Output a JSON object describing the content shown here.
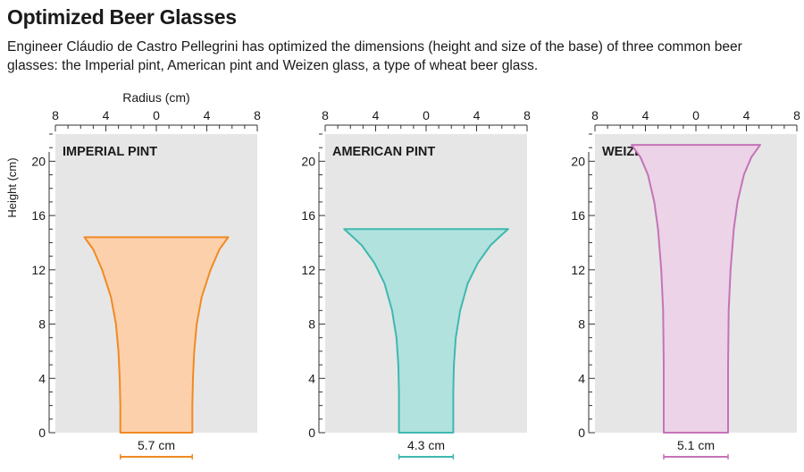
{
  "title": "Optimized Beer Glasses",
  "subtitle": "Engineer Cláudio de Castro Pellegrini has optimized the dimensions (height and size of the base) of three common beer glasses: the Imperial pint, American pint and Weizen glass, a type of wheat beer glass.",
  "chart_data": [
    {
      "type": "area",
      "title": "IMPERIAL PINT",
      "xlabel": "Radius (cm)",
      "ylabel": "Height (cm)",
      "xlim": [
        -8,
        8
      ],
      "ylim": [
        0,
        22
      ],
      "x_ticks": [
        -8,
        -4,
        0,
        4,
        8
      ],
      "x_tick_labels": [
        "8",
        "4",
        "0",
        "4",
        "8"
      ],
      "y_ticks": [
        0,
        4,
        8,
        12,
        16,
        20
      ],
      "y_tick_labels": [
        "0",
        "4",
        "8",
        "12",
        "16",
        "20"
      ],
      "base_width_label": "5.7 cm",
      "base_width": 5.7,
      "color": "#f08a24",
      "fill": "#fdd0ac",
      "profile": [
        {
          "h": 0,
          "r": 2.85
        },
        {
          "h": 2,
          "r": 2.85
        },
        {
          "h": 4,
          "r": 2.9
        },
        {
          "h": 6,
          "r": 3.0
        },
        {
          "h": 8,
          "r": 3.2
        },
        {
          "h": 10,
          "r": 3.6
        },
        {
          "h": 12,
          "r": 4.3
        },
        {
          "h": 13.5,
          "r": 5.0
        },
        {
          "h": 14.4,
          "r": 5.7
        }
      ]
    },
    {
      "type": "area",
      "title": "AMERICAN PINT",
      "xlabel": "",
      "ylabel": "",
      "xlim": [
        -8,
        8
      ],
      "ylim": [
        0,
        22
      ],
      "x_ticks": [
        -8,
        -4,
        0,
        4,
        8
      ],
      "x_tick_labels": [
        "8",
        "4",
        "0",
        "4",
        "8"
      ],
      "y_ticks": [
        0,
        4,
        8,
        12,
        16,
        20
      ],
      "y_tick_labels": [
        "0",
        "4",
        "8",
        "12",
        "16",
        "20"
      ],
      "base_width_label": "4.3 cm",
      "base_width": 4.3,
      "color": "#3fb8b0",
      "fill": "#b1e2de",
      "profile": [
        {
          "h": 0,
          "r": 2.15
        },
        {
          "h": 3,
          "r": 2.15
        },
        {
          "h": 5,
          "r": 2.2
        },
        {
          "h": 7,
          "r": 2.35
        },
        {
          "h": 9,
          "r": 2.7
        },
        {
          "h": 11,
          "r": 3.3
        },
        {
          "h": 12.5,
          "r": 4.1
        },
        {
          "h": 13.8,
          "r": 5.1
        },
        {
          "h": 14.5,
          "r": 5.9
        },
        {
          "h": 15,
          "r": 6.5
        }
      ]
    },
    {
      "type": "area",
      "title": "WEIZEN GLASS",
      "xlabel": "",
      "ylabel": "",
      "xlim": [
        -8,
        8
      ],
      "ylim": [
        0,
        22
      ],
      "x_ticks": [
        -8,
        -4,
        0,
        4,
        8
      ],
      "x_tick_labels": [
        "8",
        "4",
        "0",
        "4",
        "8"
      ],
      "y_ticks": [
        0,
        4,
        8,
        12,
        16,
        20
      ],
      "y_tick_labels": [
        "0",
        "4",
        "8",
        "12",
        "16",
        "20"
      ],
      "base_width_label": "5.1 cm",
      "base_width": 5.1,
      "color": "#c573b7",
      "fill": "#ecd3e7",
      "profile": [
        {
          "h": 0,
          "r": 2.55
        },
        {
          "h": 5,
          "r": 2.55
        },
        {
          "h": 9,
          "r": 2.6
        },
        {
          "h": 12,
          "r": 2.75
        },
        {
          "h": 15,
          "r": 3.0
        },
        {
          "h": 17,
          "r": 3.3
        },
        {
          "h": 19,
          "r": 3.8
        },
        {
          "h": 20.3,
          "r": 4.4
        },
        {
          "h": 21.2,
          "r": 5.1
        }
      ]
    }
  ]
}
